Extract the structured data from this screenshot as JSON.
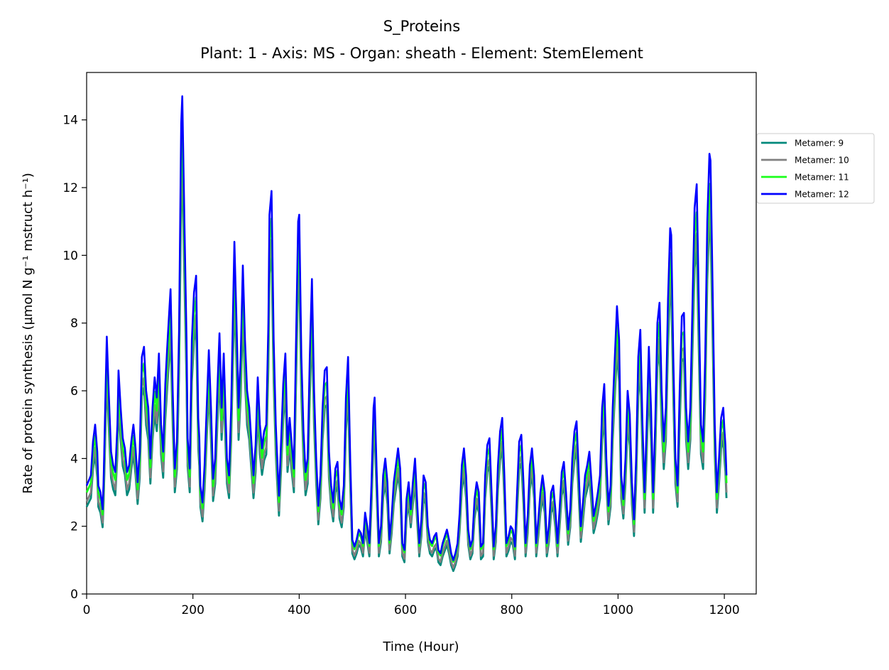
{
  "chart_data": {
    "type": "line",
    "title": "S_Proteins",
    "subtitle": "Plant: 1 - Axis: MS - Organ: sheath - Element: StemElement",
    "xlabel": "Time (Hour)",
    "ylabel": "Rate of protein synthesis (µmol N g⁻¹ mstruct h⁻¹)",
    "xlim": [
      0,
      1260
    ],
    "ylim": [
      0,
      15.4
    ],
    "xticks": [
      0,
      200,
      400,
      600,
      800,
      1000,
      1200
    ],
    "yticks": [
      0,
      2,
      4,
      6,
      8,
      10,
      12,
      14
    ],
    "grid": false,
    "legend_position": "right-outside-top",
    "peaks_12": [
      [
        0,
        3.2
      ],
      [
        8,
        3.5
      ],
      [
        12,
        4.5
      ],
      [
        16,
        5.0
      ],
      [
        20,
        4.2
      ],
      [
        22,
        3.2
      ],
      [
        26,
        3.0
      ],
      [
        30,
        2.5
      ],
      [
        32,
        3.3
      ],
      [
        36,
        6.2
      ],
      [
        38,
        7.6
      ],
      [
        42,
        5.8
      ],
      [
        46,
        4.2
      ],
      [
        50,
        3.8
      ],
      [
        54,
        3.6
      ],
      [
        58,
        5.0
      ],
      [
        60,
        6.6
      ],
      [
        64,
        5.5
      ],
      [
        68,
        4.6
      ],
      [
        72,
        4.3
      ],
      [
        76,
        3.6
      ],
      [
        80,
        3.8
      ],
      [
        84,
        4.5
      ],
      [
        88,
        5.0
      ],
      [
        92,
        4.3
      ],
      [
        96,
        3.3
      ],
      [
        100,
        4.2
      ],
      [
        104,
        7.0
      ],
      [
        108,
        7.3
      ],
      [
        112,
        6.0
      ],
      [
        116,
        5.5
      ],
      [
        120,
        4.0
      ],
      [
        124,
        5.5
      ],
      [
        128,
        6.4
      ],
      [
        132,
        5.8
      ],
      [
        136,
        7.1
      ],
      [
        140,
        5.0
      ],
      [
        144,
        4.2
      ],
      [
        148,
        6.2
      ],
      [
        152,
        7.4
      ],
      [
        156,
        8.5
      ],
      [
        158,
        9.0
      ],
      [
        162,
        6.0
      ],
      [
        166,
        3.7
      ],
      [
        170,
        4.5
      ],
      [
        174,
        7.8
      ],
      [
        178,
        13.9
      ],
      [
        180,
        14.7
      ],
      [
        184,
        11.0
      ],
      [
        188,
        7.5
      ],
      [
        190,
        4.6
      ],
      [
        194,
        3.7
      ],
      [
        198,
        7.5
      ],
      [
        202,
        8.9
      ],
      [
        206,
        9.4
      ],
      [
        210,
        5.2
      ],
      [
        212,
        4.6
      ],
      [
        214,
        3.2
      ],
      [
        218,
        2.7
      ],
      [
        222,
        3.8
      ],
      [
        226,
        5.5
      ],
      [
        230,
        7.2
      ],
      [
        234,
        5.5
      ],
      [
        238,
        3.4
      ],
      [
        242,
        4.0
      ],
      [
        246,
        6.0
      ],
      [
        250,
        7.7
      ],
      [
        254,
        5.5
      ],
      [
        258,
        7.1
      ],
      [
        262,
        5.0
      ],
      [
        264,
        4.0
      ],
      [
        268,
        3.5
      ],
      [
        272,
        5.5
      ],
      [
        276,
        8.8
      ],
      [
        278,
        10.4
      ],
      [
        282,
        8.0
      ],
      [
        286,
        5.5
      ],
      [
        290,
        7.0
      ],
      [
        294,
        9.7
      ],
      [
        298,
        7.5
      ],
      [
        302,
        6.0
      ],
      [
        306,
        5.5
      ],
      [
        310,
        4.5
      ],
      [
        314,
        3.5
      ],
      [
        318,
        4.4
      ],
      [
        322,
        6.4
      ],
      [
        326,
        5.0
      ],
      [
        330,
        4.3
      ],
      [
        334,
        4.8
      ],
      [
        338,
        5.0
      ],
      [
        342,
        8.0
      ],
      [
        344,
        11.2
      ],
      [
        348,
        11.9
      ],
      [
        352,
        7.5
      ],
      [
        356,
        5.0
      ],
      [
        360,
        3.5
      ],
      [
        362,
        2.9
      ],
      [
        366,
        4.5
      ],
      [
        370,
        6.2
      ],
      [
        374,
        7.1
      ],
      [
        378,
        4.4
      ],
      [
        382,
        5.2
      ],
      [
        386,
        4.4
      ],
      [
        390,
        3.7
      ],
      [
        394,
        7.4
      ],
      [
        398,
        11.0
      ],
      [
        400,
        11.2
      ],
      [
        404,
        7.0
      ],
      [
        408,
        4.8
      ],
      [
        412,
        3.6
      ],
      [
        416,
        4.0
      ],
      [
        420,
        7.0
      ],
      [
        424,
        9.3
      ],
      [
        428,
        6.0
      ],
      [
        432,
        4.0
      ],
      [
        436,
        2.6
      ],
      [
        440,
        3.5
      ],
      [
        444,
        5.5
      ],
      [
        448,
        6.6
      ],
      [
        452,
        6.7
      ],
      [
        456,
        4.2
      ],
      [
        460,
        3.2
      ],
      [
        464,
        2.7
      ],
      [
        468,
        3.7
      ],
      [
        472,
        3.9
      ],
      [
        476,
        2.8
      ],
      [
        480,
        2.5
      ],
      [
        484,
        3.2
      ],
      [
        488,
        5.8
      ],
      [
        492,
        7.0
      ],
      [
        496,
        4.0
      ],
      [
        500,
        1.6
      ],
      [
        504,
        1.4
      ],
      [
        508,
        1.6
      ],
      [
        512,
        1.9
      ],
      [
        516,
        1.8
      ],
      [
        520,
        1.5
      ],
      [
        524,
        2.4
      ],
      [
        528,
        2.0
      ],
      [
        532,
        1.5
      ],
      [
        536,
        3.2
      ],
      [
        540,
        5.5
      ],
      [
        542,
        5.8
      ],
      [
        546,
        3.5
      ],
      [
        550,
        1.5
      ],
      [
        554,
        2.0
      ],
      [
        558,
        3.5
      ],
      [
        562,
        4.0
      ],
      [
        566,
        3.3
      ],
      [
        570,
        1.6
      ],
      [
        574,
        2.3
      ],
      [
        578,
        3.3
      ],
      [
        582,
        3.8
      ],
      [
        586,
        4.3
      ],
      [
        590,
        3.7
      ],
      [
        594,
        1.5
      ],
      [
        598,
        1.3
      ],
      [
        602,
        2.8
      ],
      [
        606,
        3.3
      ],
      [
        610,
        2.5
      ],
      [
        614,
        3.3
      ],
      [
        618,
        4.0
      ],
      [
        622,
        2.7
      ],
      [
        626,
        1.5
      ],
      [
        630,
        2.2
      ],
      [
        634,
        3.5
      ],
      [
        638,
        3.3
      ],
      [
        642,
        2.0
      ],
      [
        646,
        1.6
      ],
      [
        650,
        1.5
      ],
      [
        654,
        1.7
      ],
      [
        658,
        1.8
      ],
      [
        662,
        1.3
      ],
      [
        666,
        1.2
      ],
      [
        670,
        1.5
      ],
      [
        674,
        1.7
      ],
      [
        678,
        1.9
      ],
      [
        682,
        1.6
      ],
      [
        686,
        1.2
      ],
      [
        690,
        1.0
      ],
      [
        694,
        1.2
      ],
      [
        698,
        1.5
      ],
      [
        702,
        2.4
      ],
      [
        706,
        3.8
      ],
      [
        710,
        4.3
      ],
      [
        714,
        3.5
      ],
      [
        718,
        1.9
      ],
      [
        722,
        1.4
      ],
      [
        726,
        1.6
      ],
      [
        730,
        2.8
      ],
      [
        734,
        3.3
      ],
      [
        738,
        3.0
      ],
      [
        742,
        1.4
      ],
      [
        746,
        1.5
      ],
      [
        750,
        3.5
      ],
      [
        754,
        4.4
      ],
      [
        758,
        4.6
      ],
      [
        762,
        3.0
      ],
      [
        766,
        1.4
      ],
      [
        770,
        2.0
      ],
      [
        774,
        3.8
      ],
      [
        778,
        4.8
      ],
      [
        782,
        5.2
      ],
      [
        786,
        3.5
      ],
      [
        790,
        1.5
      ],
      [
        794,
        1.7
      ],
      [
        798,
        2.0
      ],
      [
        802,
        1.9
      ],
      [
        806,
        1.4
      ],
      [
        810,
        3.0
      ],
      [
        814,
        4.5
      ],
      [
        818,
        4.7
      ],
      [
        822,
        3.3
      ],
      [
        826,
        1.5
      ],
      [
        830,
        2.3
      ],
      [
        834,
        3.8
      ],
      [
        838,
        4.3
      ],
      [
        842,
        3.5
      ],
      [
        846,
        1.5
      ],
      [
        850,
        2.2
      ],
      [
        854,
        3.0
      ],
      [
        858,
        3.5
      ],
      [
        862,
        3.0
      ],
      [
        866,
        1.5
      ],
      [
        870,
        2.0
      ],
      [
        874,
        3.0
      ],
      [
        878,
        3.2
      ],
      [
        882,
        2.5
      ],
      [
        886,
        1.5
      ],
      [
        890,
        2.5
      ],
      [
        894,
        3.6
      ],
      [
        898,
        3.9
      ],
      [
        902,
        3.0
      ],
      [
        906,
        1.9
      ],
      [
        910,
        2.5
      ],
      [
        914,
        4.0
      ],
      [
        918,
        4.8
      ],
      [
        922,
        5.1
      ],
      [
        926,
        3.6
      ],
      [
        930,
        2.0
      ],
      [
        934,
        2.7
      ],
      [
        938,
        3.5
      ],
      [
        942,
        3.8
      ],
      [
        946,
        4.2
      ],
      [
        950,
        3.3
      ],
      [
        954,
        2.3
      ],
      [
        958,
        2.6
      ],
      [
        962,
        3.0
      ],
      [
        966,
        3.5
      ],
      [
        970,
        5.5
      ],
      [
        974,
        6.2
      ],
      [
        978,
        4.0
      ],
      [
        982,
        2.6
      ],
      [
        986,
        3.2
      ],
      [
        990,
        5.5
      ],
      [
        994,
        7.0
      ],
      [
        998,
        8.5
      ],
      [
        1002,
        7.5
      ],
      [
        1006,
        3.5
      ],
      [
        1010,
        2.8
      ],
      [
        1014,
        4.0
      ],
      [
        1018,
        6.0
      ],
      [
        1022,
        5.3
      ],
      [
        1026,
        3.3
      ],
      [
        1030,
        2.2
      ],
      [
        1034,
        4.0
      ],
      [
        1038,
        7.0
      ],
      [
        1042,
        7.8
      ],
      [
        1046,
        5.0
      ],
      [
        1050,
        3.0
      ],
      [
        1054,
        5.0
      ],
      [
        1058,
        7.3
      ],
      [
        1062,
        5.5
      ],
      [
        1066,
        3.0
      ],
      [
        1070,
        5.0
      ],
      [
        1074,
        8.0
      ],
      [
        1078,
        8.6
      ],
      [
        1082,
        6.0
      ],
      [
        1086,
        4.5
      ],
      [
        1090,
        5.5
      ],
      [
        1094,
        8.7
      ],
      [
        1098,
        10.8
      ],
      [
        1100,
        10.6
      ],
      [
        1104,
        7.0
      ],
      [
        1108,
        4.0
      ],
      [
        1112,
        3.2
      ],
      [
        1116,
        6.0
      ],
      [
        1120,
        8.2
      ],
      [
        1124,
        8.3
      ],
      [
        1128,
        5.5
      ],
      [
        1132,
        4.5
      ],
      [
        1136,
        5.5
      ],
      [
        1140,
        8.5
      ],
      [
        1144,
        11.4
      ],
      [
        1148,
        12.1
      ],
      [
        1152,
        8.5
      ],
      [
        1156,
        5.0
      ],
      [
        1160,
        4.5
      ],
      [
        1164,
        7.0
      ],
      [
        1168,
        11.0
      ],
      [
        1172,
        13.0
      ],
      [
        1174,
        12.8
      ],
      [
        1178,
        9.0
      ],
      [
        1182,
        5.0
      ],
      [
        1186,
        3.0
      ],
      [
        1190,
        4.0
      ],
      [
        1194,
        5.2
      ],
      [
        1198,
        5.5
      ],
      [
        1200,
        4.9
      ],
      [
        1202,
        4.4
      ],
      [
        1204,
        3.5
      ]
    ],
    "series": [
      {
        "name": "Metamer: 9",
        "color": "#00897b",
        "scale": 0.86,
        "offset": -0.18
      },
      {
        "name": "Metamer: 10",
        "color": "#808080",
        "scale": 0.89,
        "offset": -0.12
      },
      {
        "name": "Metamer: 11",
        "color": "#1aff1a",
        "scale": 0.93,
        "offset": 0.02
      },
      {
        "name": "Metamer: 12",
        "color": "#0000ff",
        "scale": 1.0,
        "offset": 0.0
      }
    ]
  }
}
